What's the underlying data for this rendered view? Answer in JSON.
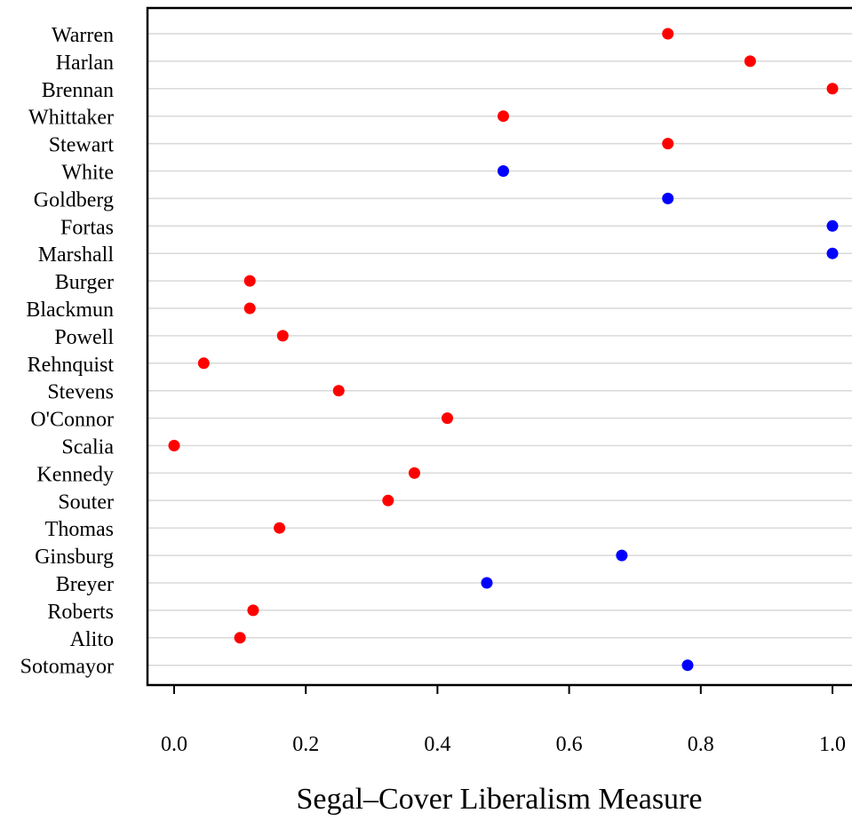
{
  "chart_data": {
    "type": "scatter",
    "title": "",
    "xlabel": "Segal–Cover Liberalism Measure",
    "ylabel": "",
    "xlim": [
      -0.04,
      1.04
    ],
    "xticks": [
      0.0,
      0.2,
      0.4,
      0.6,
      0.8,
      1.0
    ],
    "xtick_labels": [
      "0.0",
      "0.2",
      "0.4",
      "0.6",
      "0.8",
      "1.0"
    ],
    "grid": "horizontal",
    "legend": "none",
    "colors": {
      "red": "#ff0000",
      "blue": "#0000ff",
      "grid": "#d9d9d9"
    },
    "points": [
      {
        "label": "Warren",
        "x": 0.75,
        "color": "red"
      },
      {
        "label": "Harlan",
        "x": 0.875,
        "color": "red"
      },
      {
        "label": "Brennan",
        "x": 1.0,
        "color": "red"
      },
      {
        "label": "Whittaker",
        "x": 0.5,
        "color": "red"
      },
      {
        "label": "Stewart",
        "x": 0.75,
        "color": "red"
      },
      {
        "label": "White",
        "x": 0.5,
        "color": "blue"
      },
      {
        "label": "Goldberg",
        "x": 0.75,
        "color": "blue"
      },
      {
        "label": "Fortas",
        "x": 1.0,
        "color": "blue"
      },
      {
        "label": "Marshall",
        "x": 1.0,
        "color": "blue"
      },
      {
        "label": "Burger",
        "x": 0.115,
        "color": "red"
      },
      {
        "label": "Blackmun",
        "x": 0.115,
        "color": "red"
      },
      {
        "label": "Powell",
        "x": 0.165,
        "color": "red"
      },
      {
        "label": "Rehnquist",
        "x": 0.045,
        "color": "red"
      },
      {
        "label": "Stevens",
        "x": 0.25,
        "color": "red"
      },
      {
        "label": "O'Connor",
        "x": 0.415,
        "color": "red"
      },
      {
        "label": "Scalia",
        "x": 0.0,
        "color": "red"
      },
      {
        "label": "Kennedy",
        "x": 0.365,
        "color": "red"
      },
      {
        "label": "Souter",
        "x": 0.325,
        "color": "red"
      },
      {
        "label": "Thomas",
        "x": 0.16,
        "color": "red"
      },
      {
        "label": "Ginsburg",
        "x": 0.68,
        "color": "blue"
      },
      {
        "label": "Breyer",
        "x": 0.475,
        "color": "blue"
      },
      {
        "label": "Roberts",
        "x": 0.12,
        "color": "red"
      },
      {
        "label": "Alito",
        "x": 0.1,
        "color": "red"
      },
      {
        "label": "Sotomayor",
        "x": 0.78,
        "color": "blue"
      }
    ]
  }
}
